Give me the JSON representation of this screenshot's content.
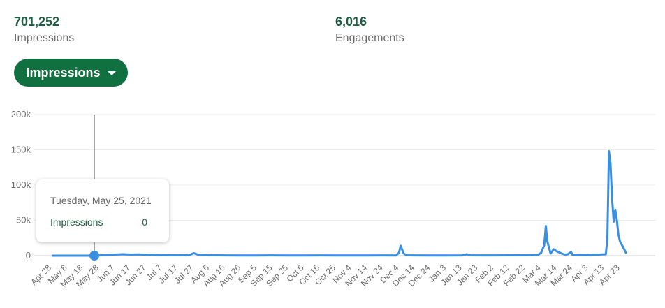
{
  "stats": {
    "impressions": {
      "value": "701,252",
      "label": "Impressions"
    },
    "engagements": {
      "value": "6,016",
      "label": "Engagements"
    }
  },
  "metric_selector": {
    "label": "Impressions",
    "icon": "caret-down-icon"
  },
  "tooltip": {
    "date": "Tuesday, May 25, 2021",
    "series": "Impressions",
    "value": "0"
  },
  "colors": {
    "accent": "#11703f",
    "line": "#3b8fe0",
    "text_dark": "#1d5e44"
  },
  "chart_data": {
    "type": "line",
    "ylim": [
      0,
      200000
    ],
    "y_ticks": [
      {
        "value": 0,
        "label": "0"
      },
      {
        "value": 50000,
        "label": "50k"
      },
      {
        "value": 100000,
        "label": "100k"
      },
      {
        "value": 150000,
        "label": "150k"
      },
      {
        "value": 200000,
        "label": "200k"
      }
    ],
    "x_tick_labels": [
      "Apr 28",
      "May 8",
      "May 18",
      "May 28",
      "Jun 7",
      "Jun 17",
      "Jun 27",
      "Jul 7",
      "Jul 17",
      "Jul 27",
      "Aug 6",
      "Aug 16",
      "Aug 26",
      "Sep 5",
      "Sep 15",
      "Sep 25",
      "Oct 5",
      "Oct 15",
      "Oct 25",
      "Nov 4",
      "Nov 14",
      "Nov 24",
      "Dec 4",
      "Dec 14",
      "Dec 24",
      "Jan 3",
      "Jan 13",
      "Jan 23",
      "Feb 2",
      "Feb 12",
      "Feb 22",
      "Mar 4",
      "Mar 14",
      "Mar 24",
      "Apr 3",
      "Apr 13",
      "Apr 23"
    ],
    "grid": true,
    "highlight": {
      "x": "May 25",
      "y": 0
    },
    "series": [
      {
        "name": "Impressions",
        "points": [
          [
            "Apr 28",
            0
          ],
          [
            "May 8",
            0
          ],
          [
            "May 18",
            0
          ],
          [
            "May 25",
            0
          ],
          [
            "Jun 1",
            800
          ],
          [
            "Jun 7",
            1500
          ],
          [
            "Jun 12",
            2000
          ],
          [
            "Jun 17",
            1500
          ],
          [
            "Jun 22",
            1800
          ],
          [
            "Jun 27",
            1200
          ],
          [
            "Jul 2",
            1000
          ],
          [
            "Jul 7",
            800
          ],
          [
            "Jul 17",
            600
          ],
          [
            "Jul 24",
            700
          ],
          [
            "Jul 27",
            3500
          ],
          [
            "Jul 30",
            1200
          ],
          [
            "Aug 6",
            600
          ],
          [
            "Aug 16",
            400
          ],
          [
            "Aug 26",
            300
          ],
          [
            "Sep 5",
            300
          ],
          [
            "Sep 15",
            400
          ],
          [
            "Sep 25",
            300
          ],
          [
            "Oct 5",
            300
          ],
          [
            "Oct 15",
            400
          ],
          [
            "Oct 25",
            300
          ],
          [
            "Nov 4",
            300
          ],
          [
            "Nov 14",
            300
          ],
          [
            "Nov 24",
            400
          ],
          [
            "Dec 2",
            300
          ],
          [
            "Dec 4",
            4000
          ],
          [
            "Dec 5",
            14000
          ],
          [
            "Dec 7",
            3000
          ],
          [
            "Dec 9",
            500
          ],
          [
            "Dec 14",
            400
          ],
          [
            "Dec 24",
            300
          ],
          [
            "Jan 3",
            300
          ],
          [
            "Jan 13",
            400
          ],
          [
            "Jan 16",
            2000
          ],
          [
            "Jan 18",
            500
          ],
          [
            "Jan 23",
            400
          ],
          [
            "Feb 2",
            400
          ],
          [
            "Feb 12",
            500
          ],
          [
            "Feb 22",
            600
          ],
          [
            "Mar 2",
            1000
          ],
          [
            "Mar 4",
            4000
          ],
          [
            "Mar 6",
            15000
          ],
          [
            "Mar 7",
            42000
          ],
          [
            "Mar 8",
            20000
          ],
          [
            "Mar 10",
            3000
          ],
          [
            "Mar 12",
            9000
          ],
          [
            "Mar 14",
            6000
          ],
          [
            "Mar 17",
            3000
          ],
          [
            "Mar 19",
            1500
          ],
          [
            "Mar 21",
            2000
          ],
          [
            "Mar 23",
            5000
          ],
          [
            "Mar 24",
            1000
          ],
          [
            "Apr 3",
            800
          ],
          [
            "Apr 10",
            1500
          ],
          [
            "Apr 14",
            2000
          ],
          [
            "Apr 15",
            25000
          ],
          [
            "Apr 16",
            148000
          ],
          [
            "Apr 17",
            130000
          ],
          [
            "Apr 18",
            80000
          ],
          [
            "Apr 19",
            48000
          ],
          [
            "Apr 20",
            65000
          ],
          [
            "Apr 21",
            50000
          ],
          [
            "Apr 22",
            30000
          ],
          [
            "Apr 23",
            20000
          ],
          [
            "Apr 25",
            12000
          ],
          [
            "Apr 27",
            3000
          ]
        ]
      }
    ]
  }
}
